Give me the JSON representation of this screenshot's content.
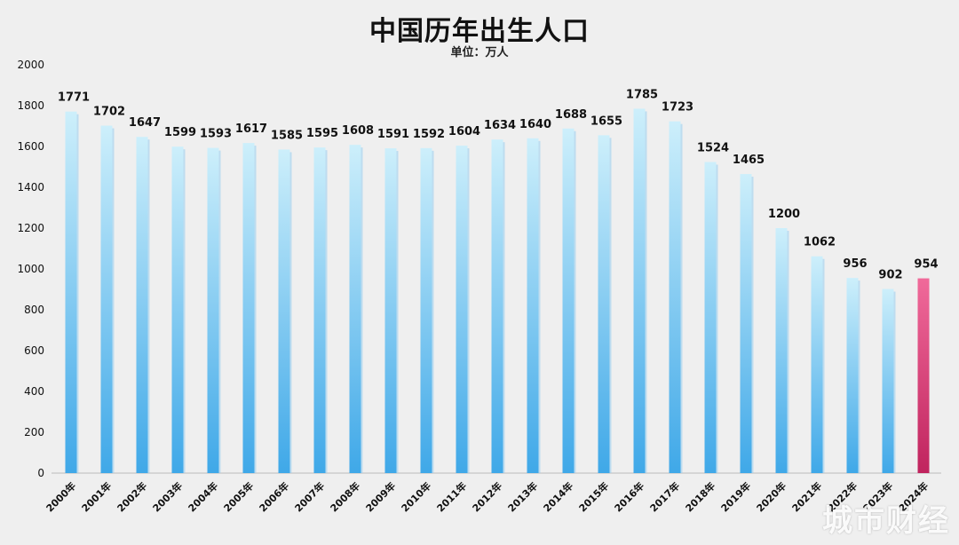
{
  "chart_data": {
    "type": "bar",
    "title": "中国历年出生人口",
    "subtitle": "单位：万人",
    "categories": [
      "2000年",
      "2001年",
      "2002年",
      "2003年",
      "2004年",
      "2005年",
      "2006年",
      "2007年",
      "2008年",
      "2009年",
      "2010年",
      "2011年",
      "2012年",
      "2013年",
      "2014年",
      "2015年",
      "2016年",
      "2017年",
      "2018年",
      "2019年",
      "2020年",
      "2021年",
      "2022年",
      "2023年",
      "2024年"
    ],
    "values": [
      1771,
      1702,
      1647,
      1599,
      1593,
      1617,
      1585,
      1595,
      1608,
      1591,
      1592,
      1604,
      1634,
      1640,
      1688,
      1655,
      1785,
      1723,
      1524,
      1465,
      1200,
      1062,
      956,
      902,
      954
    ],
    "ylim": [
      0,
      2000
    ],
    "yticks": [
      0,
      200,
      400,
      600,
      800,
      1000,
      1200,
      1400,
      1600,
      1800,
      2000
    ],
    "grid": false,
    "legend": "none",
    "highlight_index": 24,
    "colors": {
      "bar_top": "#cdeffb",
      "bar_bottom": "#3fa8e8",
      "highlight_top": "#f06a9a",
      "highlight_bottom": "#c0245e",
      "text": "#111111",
      "axis": "#bbbbbb"
    }
  },
  "watermark": "城市财经"
}
